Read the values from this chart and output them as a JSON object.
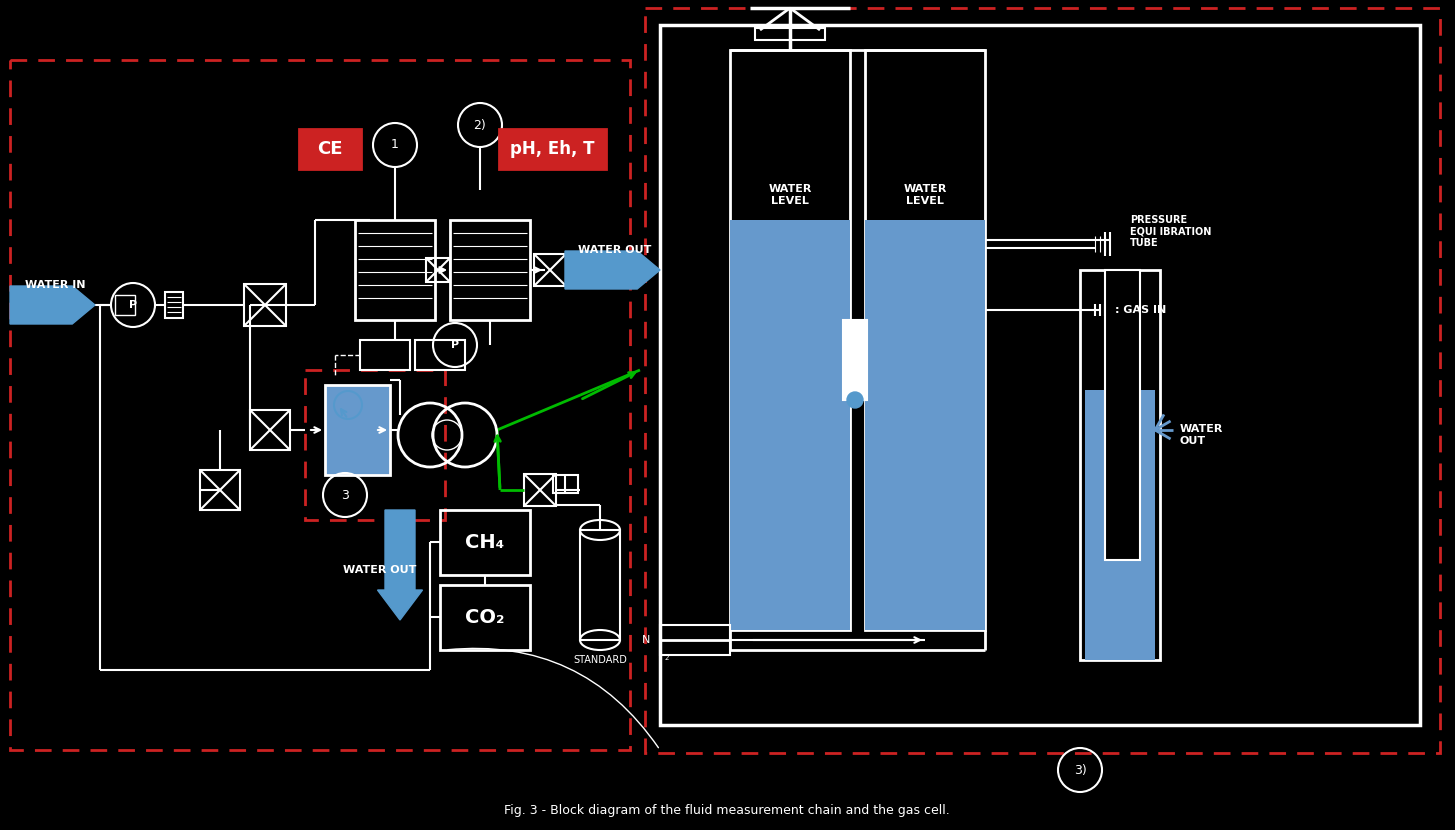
{
  "title": "Fig. 3 - Block diagram of the fluid measurement chain and the gas cell.",
  "bg_color": "#000000",
  "text_color": "#ffffff",
  "red_box_color": "#cc2222",
  "blue_color": "#5599cc",
  "green_color": "#00bb00",
  "dashed_color": "#cc2222",
  "water_blue": "#6699cc",
  "labels": {
    "water_in": "WATER IN",
    "water_out": "WATER OUT",
    "water_out2": "WATER OUT",
    "water_out_r": "WATER\nOUT",
    "ce": "CE",
    "ph_eh_t": "pH, Eh, T",
    "standard": "STANDARD",
    "ch4": "CH₄",
    "co2": "CO₂",
    "pressure_eq": "PRESSURE\nEQUI IBRATION\nTUBE",
    "gas_in": ": GAS IN",
    "water_level1": "WATER\nLEVEL",
    "water_level2": "WATER\nLEVEL",
    "circle3": "3",
    "circle3b": "3)",
    "circle1": "1",
    "circle2": "2)",
    "circleP1": "P",
    "circleP2": "P",
    "N2": "N"
  }
}
